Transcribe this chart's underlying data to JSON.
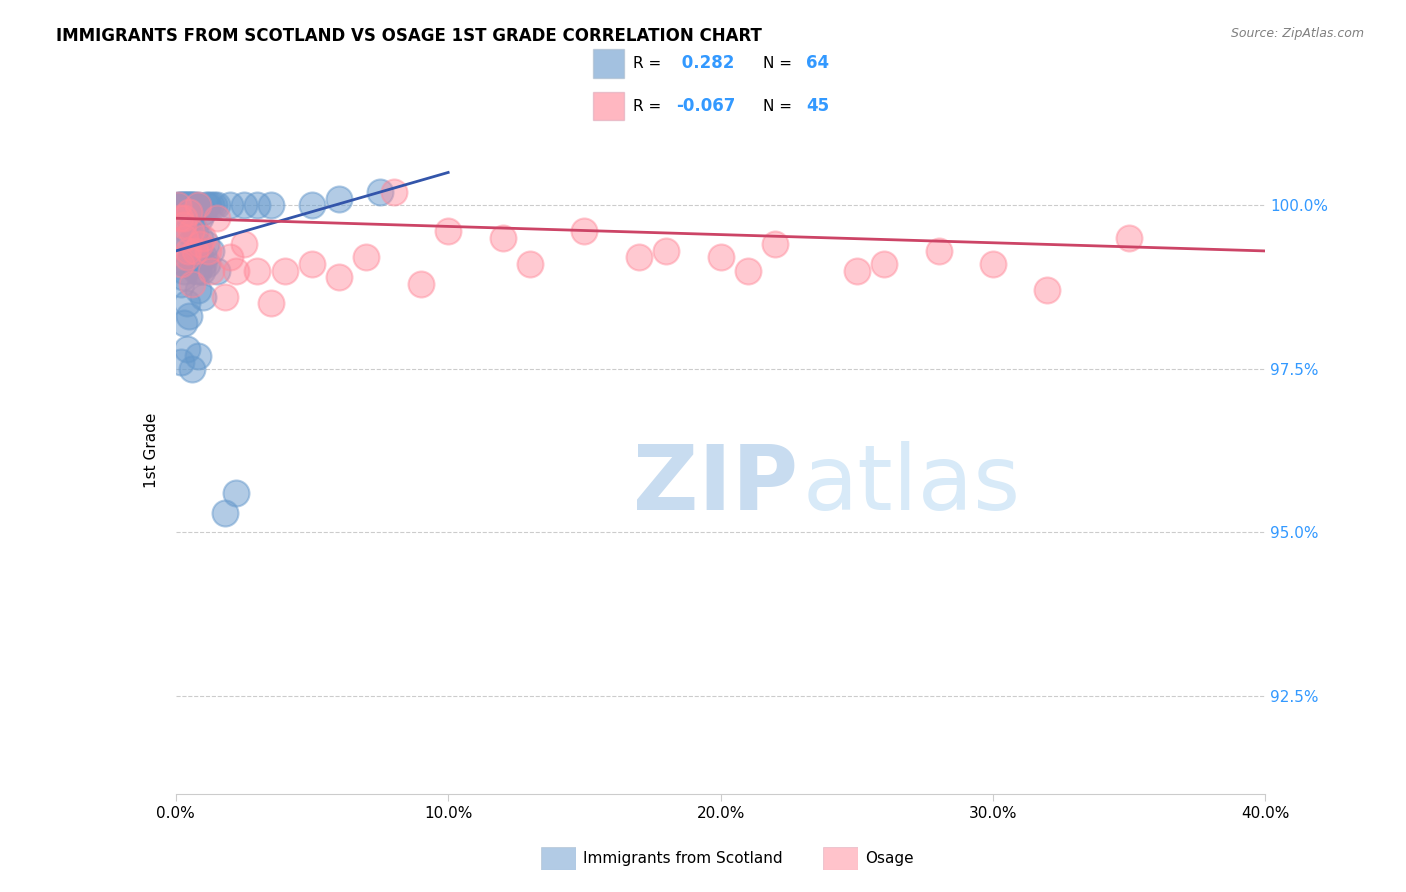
{
  "title": "IMMIGRANTS FROM SCOTLAND VS OSAGE 1ST GRADE CORRELATION CHART",
  "source": "Source: ZipAtlas.com",
  "ylabel_left": "1st Grade",
  "legend_label1": "Immigrants from Scotland",
  "legend_label2": "Osage",
  "R1": 0.282,
  "N1": 64,
  "R2": -0.067,
  "N2": 45,
  "color_blue": "#6699CC",
  "color_pink": "#FF8899",
  "color_blue_line": "#3355AA",
  "color_pink_line": "#CC4466",
  "xlim": [
    0.0,
    40.0
  ],
  "ylim": [
    91.0,
    101.5
  ],
  "xtick_vals": [
    0,
    10,
    20,
    30,
    40
  ],
  "xtick_labels": [
    "0.0%",
    "10.0%",
    "20.0%",
    "30.0%",
    "40.0%"
  ],
  "ytick_vals": [
    100.0,
    97.5,
    95.0,
    92.5
  ],
  "ytick_labels": [
    "100.0%",
    "97.5%",
    "95.0%",
    "92.5%"
  ],
  "blue_x": [
    0.1,
    0.15,
    0.2,
    0.25,
    0.3,
    0.35,
    0.4,
    0.45,
    0.5,
    0.55,
    0.6,
    0.65,
    0.7,
    0.8,
    0.9,
    1.0,
    1.1,
    1.2,
    1.3,
    1.4,
    1.5,
    0.3,
    0.4,
    0.5,
    0.6,
    0.7,
    0.8,
    1.0,
    1.5,
    2.0,
    2.5,
    3.0,
    6.0,
    7.5,
    0.2,
    0.3,
    0.4,
    0.8,
    1.0,
    0.5,
    0.6,
    0.7,
    0.9,
    1.1,
    1.3,
    0.2,
    0.4,
    0.6,
    0.8,
    3.5,
    5.0,
    1.8,
    2.2,
    0.3,
    0.5,
    0.35,
    0.55,
    0.75,
    0.95,
    1.15,
    0.25,
    0.45,
    0.85,
    1.05
  ],
  "blue_y": [
    100.0,
    100.0,
    100.0,
    100.0,
    100.0,
    100.0,
    100.0,
    100.0,
    100.0,
    100.0,
    100.0,
    100.0,
    100.0,
    100.0,
    99.8,
    99.9,
    100.0,
    100.0,
    100.0,
    100.0,
    100.0,
    99.5,
    99.6,
    99.4,
    99.3,
    99.2,
    99.0,
    99.1,
    99.0,
    100.0,
    100.0,
    100.0,
    100.1,
    100.2,
    98.8,
    99.0,
    98.5,
    98.7,
    98.6,
    99.8,
    99.7,
    99.6,
    99.5,
    99.4,
    99.3,
    97.6,
    97.8,
    97.5,
    97.7,
    100.0,
    100.0,
    95.3,
    95.6,
    98.2,
    98.3,
    99.1,
    99.2,
    99.0,
    99.0,
    99.1,
    98.9,
    99.1,
    99.3,
    99.2
  ],
  "pink_x": [
    0.1,
    0.3,
    0.5,
    0.8,
    1.0,
    1.2,
    1.5,
    2.0,
    2.5,
    3.0,
    5.0,
    8.0,
    10.0,
    12.0,
    15.0,
    18.0,
    20.0,
    22.0,
    25.0,
    28.0,
    30.0,
    0.4,
    0.6,
    1.8,
    4.0,
    7.0,
    0.2,
    0.7,
    1.3,
    0.9,
    0.15,
    0.25,
    0.55,
    0.35,
    0.45,
    2.2,
    3.5,
    6.0,
    9.0,
    13.0,
    17.0,
    21.0,
    26.0,
    32.0,
    35.0
  ],
  "pink_y": [
    100.0,
    99.8,
    99.9,
    100.0,
    99.5,
    99.3,
    99.8,
    99.2,
    99.4,
    99.0,
    99.1,
    100.2,
    99.6,
    99.5,
    99.6,
    99.3,
    99.2,
    99.4,
    99.0,
    99.3,
    99.1,
    99.2,
    98.8,
    98.6,
    99.0,
    99.2,
    99.1,
    99.3,
    99.0,
    99.4,
    99.8,
    99.7,
    99.6,
    99.5,
    99.3,
    99.0,
    98.5,
    98.9,
    98.8,
    99.1,
    99.2,
    99.0,
    99.1,
    98.7,
    99.5
  ],
  "blue_trend_x": [
    0.0,
    10.0
  ],
  "blue_trend_y": [
    99.3,
    100.5
  ],
  "pink_trend_x": [
    0.0,
    40.0
  ],
  "pink_trend_y": [
    99.8,
    99.3
  ]
}
